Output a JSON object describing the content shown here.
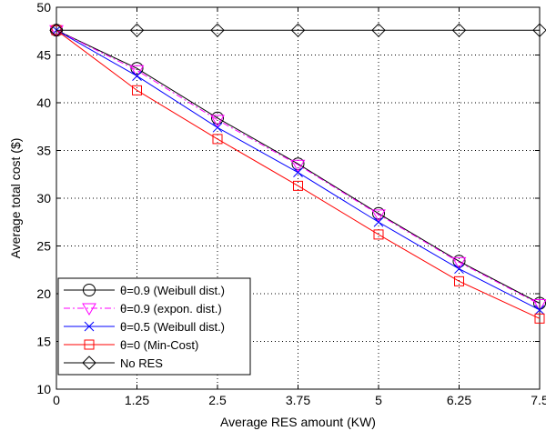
{
  "chart_data": {
    "type": "line",
    "xlabel": "Average RES amount (KW)",
    "ylabel": "Average total cost ($)",
    "x": [
      0,
      1.25,
      2.5,
      3.75,
      5,
      6.25,
      7.5
    ],
    "x_tick_labels": [
      "0",
      "1.25",
      "2.5",
      "3.75",
      "5",
      "6.25",
      "7.5"
    ],
    "y_ticks": [
      10,
      15,
      20,
      25,
      30,
      35,
      40,
      45,
      50
    ],
    "xlim": [
      0,
      7.5
    ],
    "ylim": [
      10,
      50
    ],
    "grid": true,
    "legend_position": "bottom-left",
    "series": [
      {
        "name": "θ=0.9 (Weibull dist.)",
        "color": "#000000",
        "marker": "circle",
        "dash": "solid",
        "values": [
          47.6,
          43.6,
          38.4,
          33.6,
          28.4,
          23.4,
          19.0
        ]
      },
      {
        "name": "θ=0.9 (expon. dist.)",
        "color": "#ff00ff",
        "marker": "triangle-down",
        "dash": "dashdot",
        "values": [
          47.6,
          43.4,
          38.2,
          33.5,
          28.3,
          23.3,
          18.9
        ]
      },
      {
        "name": "θ=0.5 (Weibull dist.)",
        "color": "#0000ff",
        "marker": "x",
        "dash": "solid",
        "values": [
          47.6,
          42.8,
          37.4,
          32.7,
          27.5,
          22.6,
          18.3
        ]
      },
      {
        "name": "θ=0 (Min-Cost)",
        "color": "#ff0000",
        "marker": "square",
        "dash": "solid",
        "values": [
          47.6,
          41.3,
          36.2,
          31.3,
          26.2,
          21.3,
          17.4
        ]
      },
      {
        "name": "No RES",
        "color": "#000000",
        "marker": "diamond",
        "dash": "solid",
        "values": [
          47.6,
          47.6,
          47.6,
          47.6,
          47.6,
          47.6,
          47.6
        ]
      }
    ]
  }
}
